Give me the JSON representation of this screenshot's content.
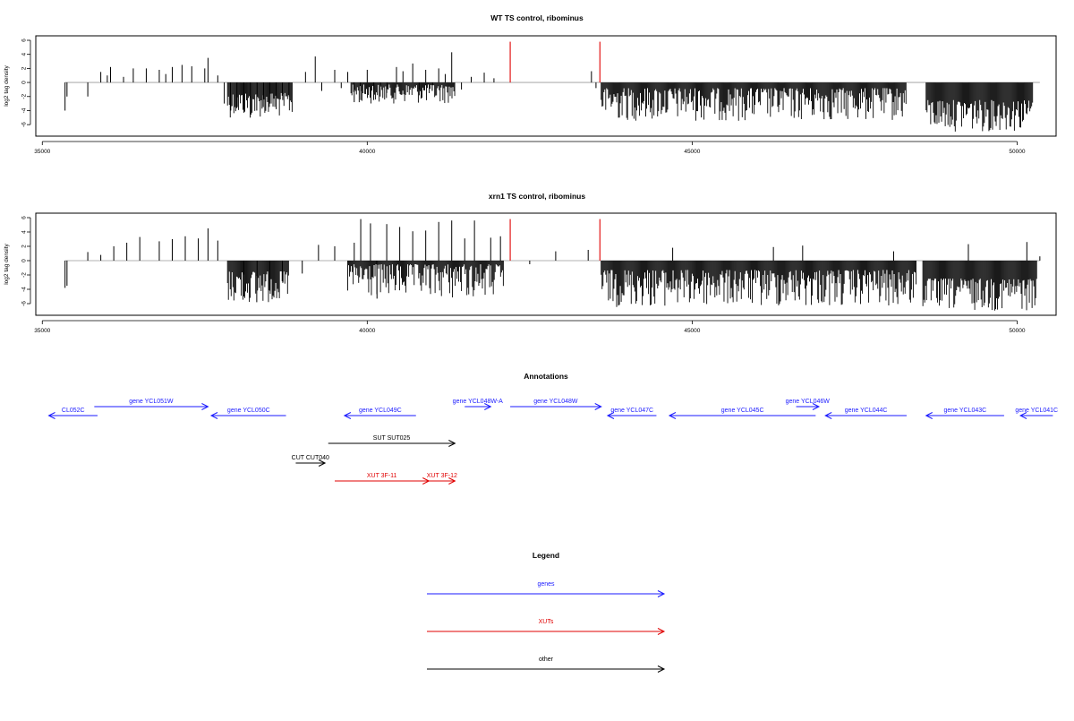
{
  "chart_data": [
    {
      "type": "bar",
      "title": "WT TS control, ribominus",
      "ylabel": "log2 tag density",
      "xlabel": "",
      "xlim": [
        34900,
        50600
      ],
      "ylim": [
        -7,
        6
      ],
      "xticks": [
        35000,
        40000,
        45000,
        50000
      ],
      "yticks": [
        6,
        4,
        2,
        0,
        -2,
        -4,
        -6
      ],
      "highlight_x": [
        42200,
        43580
      ],
      "highlight_color": "#e00000",
      "series": [
        {
          "profile": [
            [
              35350,
              -4
            ],
            [
              35380,
              -2
            ],
            [
              35700,
              -2
            ],
            [
              35900,
              1.5
            ],
            [
              36000,
              1
            ],
            [
              36050,
              2.2
            ],
            [
              36250,
              0.8
            ],
            [
              36400,
              2
            ],
            [
              36600,
              2
            ],
            [
              36800,
              1.8
            ],
            [
              36900,
              1.2
            ],
            [
              37000,
              2.2
            ],
            [
              37150,
              2.5
            ],
            [
              37300,
              2.3
            ],
            [
              37500,
              2
            ],
            [
              37550,
              3.5
            ],
            [
              37700,
              1
            ],
            [
              37800,
              -3
            ],
            [
              37900,
              -4
            ],
            [
              38000,
              -3.5
            ],
            [
              38100,
              -3.8
            ],
            [
              38200,
              -5
            ],
            [
              38300,
              -4
            ],
            [
              38400,
              -3.5
            ],
            [
              38500,
              -3
            ],
            [
              38600,
              -3.8
            ],
            [
              38700,
              -2.5
            ],
            [
              38800,
              -2
            ],
            [
              39050,
              1.5
            ],
            [
              39200,
              3.7
            ],
            [
              39300,
              -1.2
            ],
            [
              39500,
              1.8
            ],
            [
              39600,
              -0.8
            ],
            [
              39700,
              1.5
            ],
            [
              39800,
              -2.8
            ],
            [
              39900,
              -2.5
            ],
            [
              40000,
              1.8
            ],
            [
              40100,
              -2.5
            ],
            [
              40200,
              -2
            ],
            [
              40300,
              -1.5
            ],
            [
              40450,
              2.2
            ],
            [
              40550,
              1.6
            ],
            [
              40700,
              2.7
            ],
            [
              40800,
              -1
            ],
            [
              40900,
              1.8
            ],
            [
              41000,
              -1.2
            ],
            [
              41100,
              2
            ],
            [
              41200,
              1.2
            ],
            [
              41300,
              4.3
            ],
            [
              41450,
              -1
            ],
            [
              41600,
              0.8
            ],
            [
              41800,
              1.4
            ],
            [
              41950,
              0.6
            ],
            [
              43450,
              1.6
            ],
            [
              43520,
              -0.8
            ]
          ],
          "dense_blocks": [
            {
              "range": [
                37850,
                38850
              ],
              "min": -5,
              "base_min": -1.5
            },
            {
              "range": [
                39750,
                41350
              ],
              "min": -3,
              "base_min": -0.3
            },
            {
              "range": [
                43600,
                48300
              ],
              "min": -5.5,
              "base_min": -0.8
            },
            {
              "range": [
                48600,
                50250
              ],
              "min": -7,
              "base_min": -2.5
            }
          ]
        }
      ]
    },
    {
      "type": "bar",
      "title": "xrn1 TS control, ribominus",
      "ylabel": "log2 tag density",
      "xlabel": "",
      "xlim": [
        34900,
        50600
      ],
      "ylim": [
        -7,
        6
      ],
      "xticks": [
        35000,
        40000,
        45000,
        50000
      ],
      "yticks": [
        6,
        4,
        2,
        0,
        -2,
        -4,
        -6
      ],
      "highlight_x": [
        42200,
        43580
      ],
      "highlight_color": "#e00000",
      "series": [
        {
          "profile": [
            [
              35350,
              -3.8
            ],
            [
              35380,
              -3.5
            ],
            [
              35700,
              1.2
            ],
            [
              35900,
              0.8
            ],
            [
              36100,
              2
            ],
            [
              36300,
              2.5
            ],
            [
              36500,
              3.3
            ],
            [
              36800,
              2.7
            ],
            [
              37000,
              3
            ],
            [
              37200,
              3.4
            ],
            [
              37400,
              3.1
            ],
            [
              37550,
              4.5
            ],
            [
              37700,
              2.8
            ],
            [
              38100,
              -5
            ],
            [
              38300,
              -5.8
            ],
            [
              38500,
              -4.2
            ],
            [
              38700,
              -3.1
            ],
            [
              39000,
              -1.8
            ],
            [
              39250,
              2.2
            ],
            [
              39500,
              2
            ],
            [
              39800,
              2.5
            ],
            [
              39900,
              5.8
            ],
            [
              40050,
              5.2
            ],
            [
              40150,
              -5.3
            ],
            [
              40300,
              5.1
            ],
            [
              40500,
              4.7
            ],
            [
              40700,
              4.1
            ],
            [
              40900,
              4.2
            ],
            [
              41100,
              5.4
            ],
            [
              41300,
              5.6
            ],
            [
              41500,
              3.1
            ],
            [
              41650,
              5.6
            ],
            [
              41900,
              3.2
            ],
            [
              42050,
              3.4
            ],
            [
              42500,
              -0.5
            ],
            [
              42900,
              1.3
            ],
            [
              43400,
              1.5
            ],
            [
              44700,
              1.8
            ],
            [
              46250,
              1.9
            ],
            [
              46700,
              2.1
            ],
            [
              48100,
              1.3
            ],
            [
              49250,
              2.3
            ],
            [
              50150,
              2.6
            ],
            [
              50350,
              0.6
            ]
          ],
          "dense_blocks": [
            {
              "range": [
                37850,
                38800
              ],
              "min": -6,
              "base_min": -1.5
            },
            {
              "range": [
                39700,
                42100
              ],
              "min": -5.3,
              "base_min": -0.5
            },
            {
              "range": [
                43600,
                48450
              ],
              "min": -6.5,
              "base_min": -1.3
            },
            {
              "range": [
                48550,
                50300
              ],
              "min": -7,
              "base_min": -2.5
            }
          ]
        }
      ]
    }
  ],
  "annotations": {
    "title": "Annotations",
    "items": [
      {
        "label": "CL052C",
        "x_start": 35850,
        "x_end": 35100,
        "row": 1,
        "color": "#1a1aff"
      },
      {
        "label": "gene YCL051W",
        "x_start": 35800,
        "x_end": 37550,
        "row": 0,
        "color": "#1a1aff"
      },
      {
        "label": "gene YCL050C",
        "x_start": 38750,
        "x_end": 37600,
        "row": 1,
        "color": "#1a1aff"
      },
      {
        "label": "gene YCL049C",
        "x_start": 40750,
        "x_end": 39650,
        "row": 1,
        "color": "#1a1aff"
      },
      {
        "label": "gene YCL048W-A",
        "x_start": 41500,
        "x_end": 41900,
        "row": 0,
        "color": "#1a1aff"
      },
      {
        "label": "gene YCL048W",
        "x_start": 42200,
        "x_end": 43600,
        "row": 0,
        "color": "#1a1aff"
      },
      {
        "label": "gene YCL047C",
        "x_start": 44450,
        "x_end": 43700,
        "row": 1,
        "color": "#1a1aff"
      },
      {
        "label": "gene YCL045C",
        "x_start": 46900,
        "x_end": 44650,
        "row": 1,
        "color": "#1a1aff"
      },
      {
        "label": "gene YCL046W",
        "x_start": 46600,
        "x_end": 46950,
        "row": 0,
        "color": "#1a1aff"
      },
      {
        "label": "gene YCL044C",
        "x_start": 48300,
        "x_end": 47050,
        "row": 1,
        "color": "#1a1aff"
      },
      {
        "label": "gene YCL043C",
        "x_start": 49800,
        "x_end": 48600,
        "row": 1,
        "color": "#1a1aff"
      },
      {
        "label": "gene YCL041C",
        "x_start": 50550,
        "x_end": 50050,
        "row": 1,
        "color": "#1a1aff"
      },
      {
        "label": "SUT SUT025",
        "x_start": 39400,
        "x_end": 41350,
        "row": 2,
        "color": "#000000"
      },
      {
        "label": "CUT CUT040",
        "x_start": 38900,
        "x_end": 39350,
        "row": 3,
        "color": "#000000"
      },
      {
        "label": "XUT 3F-11",
        "x_start": 39500,
        "x_end": 40950,
        "row": 4,
        "color": "#e00000"
      },
      {
        "label": "XUT 3F-12",
        "x_start": 40950,
        "x_end": 41350,
        "row": 4,
        "color": "#e00000"
      }
    ]
  },
  "legend": {
    "title": "Legend",
    "items": [
      {
        "label": "genes",
        "color": "#1a1aff"
      },
      {
        "label": "XUTs",
        "color": "#e00000"
      },
      {
        "label": "other",
        "color": "#000000"
      }
    ]
  }
}
